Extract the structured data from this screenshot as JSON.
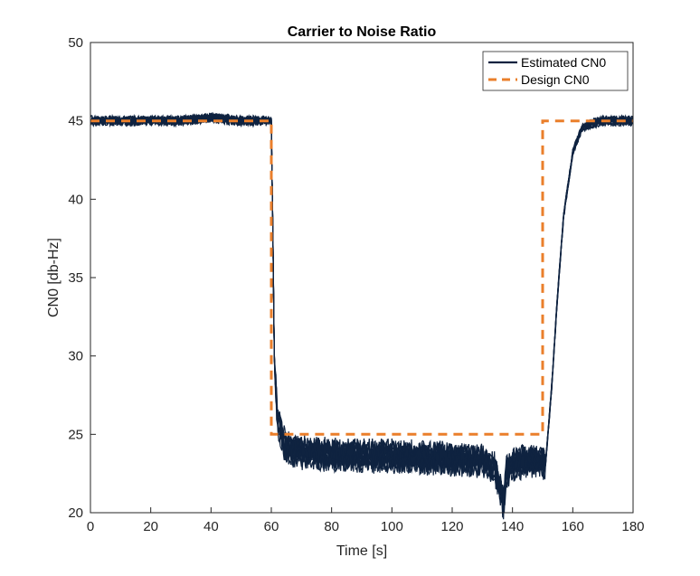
{
  "chart_data": {
    "type": "line",
    "title": "Carrier to Noise Ratio",
    "xlabel": "Time [s]",
    "ylabel": "CN0 [db-Hz]",
    "xlim": [
      0,
      180
    ],
    "ylim": [
      20,
      50
    ],
    "xticks": [
      0,
      20,
      40,
      60,
      80,
      100,
      120,
      140,
      160,
      180
    ],
    "yticks": [
      20,
      25,
      30,
      35,
      40,
      45,
      50
    ],
    "grid": false,
    "legend_position": "top-right",
    "series": [
      {
        "name": "Estimated CN0",
        "color": "#0f2340",
        "style": "solid",
        "x": [
          0,
          10,
          20,
          30,
          40,
          50,
          59,
          60,
          60.5,
          61,
          62,
          64,
          66,
          70,
          80,
          90,
          100,
          110,
          120,
          130,
          134,
          136,
          137,
          138,
          140,
          145,
          150,
          151,
          153,
          155,
          157,
          160,
          163,
          166,
          170,
          175,
          180
        ],
        "y": [
          45.0,
          45.0,
          45.0,
          45.0,
          45.2,
          45.0,
          45.0,
          45.0,
          38,
          30,
          26,
          24.5,
          24.0,
          23.8,
          23.7,
          23.6,
          23.6,
          23.5,
          23.4,
          23.3,
          22.8,
          21.5,
          20.5,
          22.5,
          23.0,
          23.3,
          23.2,
          23.2,
          28,
          34,
          39,
          43,
          44.5,
          44.8,
          45.0,
          45.0,
          45.0
        ]
      },
      {
        "name": "Design CN0",
        "color": "#ea7f2b",
        "style": "dashed",
        "x": [
          0,
          60,
          60,
          150,
          150,
          180
        ],
        "y": [
          45,
          45,
          25,
          25,
          45,
          45
        ]
      }
    ]
  }
}
